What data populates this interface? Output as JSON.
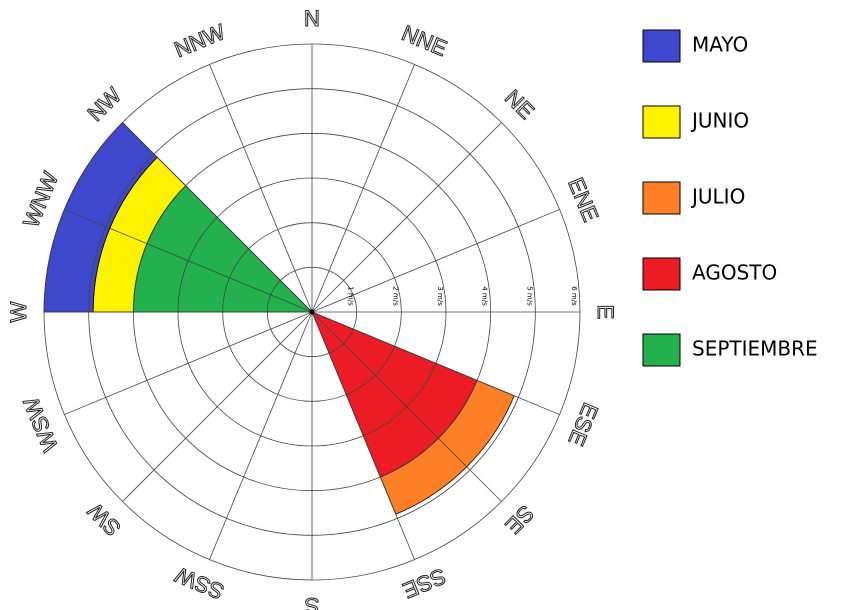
{
  "chart_data": {
    "type": "windrose",
    "categories": [
      "N",
      "NNE",
      "NE",
      "ENE",
      "E",
      "ESE",
      "SE",
      "SSE",
      "S",
      "SSW",
      "SW",
      "WSW",
      "W",
      "WNW",
      "NW",
      "NNW"
    ],
    "series": [
      {
        "name": "MAYO",
        "color": "#3f48cc",
        "values": [
          0,
          0,
          0,
          0,
          0,
          0,
          0,
          0,
          0,
          0,
          0,
          0,
          0,
          1.1,
          0,
          0
        ]
      },
      {
        "name": "JUNIO",
        "color": "#fff200",
        "values": [
          0,
          0,
          0,
          0,
          0,
          0,
          0,
          0,
          0,
          0,
          0,
          0,
          0,
          0.9,
          0,
          0
        ]
      },
      {
        "name": "JULIO",
        "color": "#ff7f27",
        "values": [
          0,
          0,
          0,
          0,
          0,
          0,
          0.9,
          0,
          0,
          0,
          0,
          0,
          0,
          0,
          0,
          0
        ]
      },
      {
        "name": "AGOSTO",
        "color": "#ed1c24",
        "values": [
          0,
          0,
          0,
          0,
          0,
          0,
          4,
          0,
          0,
          0,
          0,
          0,
          0,
          0,
          0,
          0
        ]
      },
      {
        "name": "SEPTIEMBRE",
        "color": "#22b14c",
        "values": [
          0,
          0,
          0,
          0,
          0,
          0,
          0,
          0,
          0,
          0,
          0,
          0,
          0,
          4,
          0,
          0
        ]
      }
    ],
    "rlim": [
      0,
      6
    ],
    "rticks": [
      {
        "value": 1,
        "label": "1 m/s"
      },
      {
        "value": 2,
        "label": "2 m/s"
      },
      {
        "value": 3,
        "label": "3 m/s"
      },
      {
        "value": 4,
        "label": "4 m/s"
      },
      {
        "value": 5,
        "label": "5 m/s"
      },
      {
        "value": 6,
        "label": "6 m/s"
      }
    ],
    "grid": true
  }
}
